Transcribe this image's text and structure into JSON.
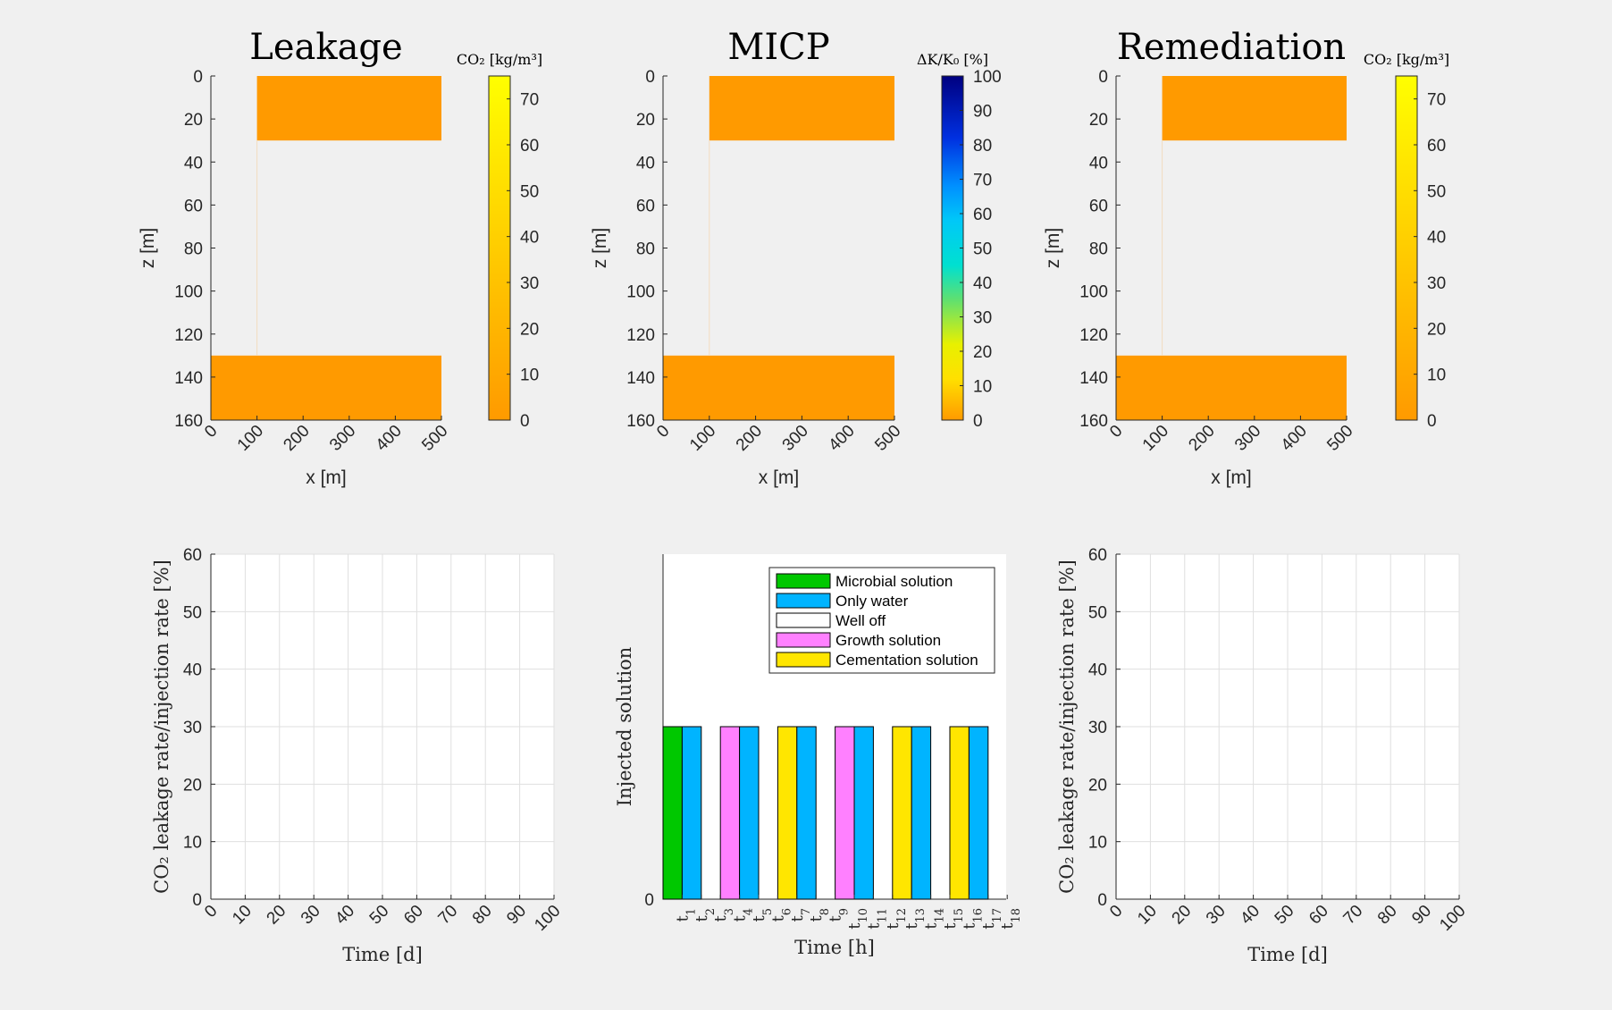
{
  "colors": {
    "background": "#f0f0f0",
    "orange": "#ff9a00",
    "microbial": "#00c800",
    "water": "#00b4ff",
    "well_off": "#ffffff",
    "growth": "#ff80ff",
    "cementation": "#ffe600"
  },
  "chart_data": [
    {
      "type": "heatmap",
      "title": "Leakage",
      "xlabel": "x [m]",
      "ylabel": "z [m]",
      "xlim": [
        0,
        500
      ],
      "ylim": [
        160,
        0
      ],
      "xticks": [
        "0",
        "100",
        "200",
        "300",
        "400",
        "500"
      ],
      "yticks": [
        "0",
        "20",
        "40",
        "60",
        "80",
        "100",
        "120",
        "140",
        "160"
      ],
      "cells": [
        {
          "x0": 100,
          "x1": 500,
          "z0": 0,
          "z1": 30,
          "value": 0
        },
        {
          "x0": 0,
          "x1": 500,
          "z0": 130,
          "z1": 160,
          "value": 0
        }
      ],
      "colorbar": {
        "label": "CO₂ [kg/m³]",
        "ticks": [
          "0",
          "10",
          "20",
          "30",
          "40",
          "50",
          "60",
          "70"
        ],
        "range": [
          0,
          75
        ],
        "colormap": "orange-yellow"
      }
    },
    {
      "type": "heatmap",
      "title": "MICP",
      "xlabel": "x [m]",
      "ylabel": "z [m]",
      "xlim": [
        0,
        500
      ],
      "ylim": [
        160,
        0
      ],
      "xticks": [
        "0",
        "100",
        "200",
        "300",
        "400",
        "500"
      ],
      "yticks": [
        "0",
        "20",
        "40",
        "60",
        "80",
        "100",
        "120",
        "140",
        "160"
      ],
      "cells": [
        {
          "x0": 100,
          "x1": 500,
          "z0": 0,
          "z1": 30,
          "value": 0
        },
        {
          "x0": 0,
          "x1": 500,
          "z0": 130,
          "z1": 160,
          "value": 0
        }
      ],
      "colorbar": {
        "label": "ΔK/K₀ [%]",
        "ticks": [
          "0",
          "10",
          "20",
          "30",
          "40",
          "50",
          "60",
          "70",
          "80",
          "90",
          "100"
        ],
        "range": [
          0,
          100
        ],
        "colormap": "orange-yellow-green-cyan-blue"
      }
    },
    {
      "type": "heatmap",
      "title": "Remediation",
      "xlabel": "x [m]",
      "ylabel": "z [m]",
      "xlim": [
        0,
        500
      ],
      "ylim": [
        160,
        0
      ],
      "xticks": [
        "0",
        "100",
        "200",
        "300",
        "400",
        "500"
      ],
      "yticks": [
        "0",
        "20",
        "40",
        "60",
        "80",
        "100",
        "120",
        "140",
        "160"
      ],
      "cells": [
        {
          "x0": 100,
          "x1": 500,
          "z0": 0,
          "z1": 30,
          "value": 0
        },
        {
          "x0": 0,
          "x1": 500,
          "z0": 130,
          "z1": 160,
          "value": 0
        }
      ],
      "colorbar": {
        "label": "CO₂ [kg/m³]",
        "ticks": [
          "0",
          "10",
          "20",
          "30",
          "40",
          "50",
          "60",
          "70"
        ],
        "range": [
          0,
          75
        ],
        "colormap": "orange-yellow"
      }
    },
    {
      "type": "line",
      "title": "",
      "xlabel": "Time [d]",
      "ylabel": "CO₂ leakage rate/injection rate [%]",
      "xlim": [
        0,
        100
      ],
      "ylim": [
        0,
        60
      ],
      "xticks": [
        "0",
        "10",
        "20",
        "30",
        "40",
        "50",
        "60",
        "70",
        "80",
        "90",
        "100"
      ],
      "yticks": [
        "0",
        "10",
        "20",
        "30",
        "40",
        "50",
        "60"
      ],
      "grid": true,
      "series": []
    },
    {
      "type": "bar",
      "title": "",
      "xlabel": "Time [h]",
      "ylabel": "Injected solution",
      "xlim": [
        0,
        18
      ],
      "ylim": [
        0,
        1
      ],
      "yticks": [
        "0"
      ],
      "xticks": [
        {
          "t": "t",
          "sub": "1"
        },
        {
          "t": "t",
          "sub": "2"
        },
        {
          "t": "t",
          "sub": "3"
        },
        {
          "t": "t",
          "sub": "4"
        },
        {
          "t": "t",
          "sub": "5"
        },
        {
          "t": "t",
          "sub": "6"
        },
        {
          "t": "t",
          "sub": "7"
        },
        {
          "t": "t",
          "sub": "8"
        },
        {
          "t": "t",
          "sub": "9"
        },
        {
          "t": "t",
          "sub": "10"
        },
        {
          "t": "t",
          "sub": "11"
        },
        {
          "t": "t",
          "sub": "12"
        },
        {
          "t": "t",
          "sub": "13"
        },
        {
          "t": "t",
          "sub": "14"
        },
        {
          "t": "t",
          "sub": "15"
        },
        {
          "t": "t",
          "sub": "16"
        },
        {
          "t": "t",
          "sub": "17"
        },
        {
          "t": "t",
          "sub": "18"
        }
      ],
      "legend": [
        {
          "name": "Microbial solution",
          "key": "microbial"
        },
        {
          "name": "Only water",
          "key": "water"
        },
        {
          "name": "Well off",
          "key": "well_off"
        },
        {
          "name": "Growth solution",
          "key": "growth"
        },
        {
          "name": "Cementation solution",
          "key": "cementation"
        }
      ],
      "bars": [
        {
          "start": 0,
          "end": 1,
          "key": "microbial",
          "value": 0.5
        },
        {
          "start": 1,
          "end": 2,
          "key": "water",
          "value": 0.5
        },
        {
          "start": 3,
          "end": 4,
          "key": "growth",
          "value": 0.5
        },
        {
          "start": 4,
          "end": 5,
          "key": "water",
          "value": 0.5
        },
        {
          "start": 6,
          "end": 7,
          "key": "cementation",
          "value": 0.5
        },
        {
          "start": 7,
          "end": 8,
          "key": "water",
          "value": 0.5
        },
        {
          "start": 9,
          "end": 10,
          "key": "growth",
          "value": 0.5
        },
        {
          "start": 10,
          "end": 11,
          "key": "water",
          "value": 0.5
        },
        {
          "start": 12,
          "end": 13,
          "key": "cementation",
          "value": 0.5
        },
        {
          "start": 13,
          "end": 14,
          "key": "water",
          "value": 0.5
        },
        {
          "start": 15,
          "end": 16,
          "key": "cementation",
          "value": 0.5
        },
        {
          "start": 16,
          "end": 17,
          "key": "water",
          "value": 0.5
        }
      ]
    },
    {
      "type": "line",
      "title": "",
      "xlabel": "Time [d]",
      "ylabel": "CO₂ leakage rate/injection rate [%]",
      "xlim": [
        0,
        100
      ],
      "ylim": [
        0,
        60
      ],
      "xticks": [
        "0",
        "10",
        "20",
        "30",
        "40",
        "50",
        "60",
        "70",
        "80",
        "90",
        "100"
      ],
      "yticks": [
        "0",
        "10",
        "20",
        "30",
        "40",
        "50",
        "60"
      ],
      "grid": true,
      "series": []
    }
  ]
}
